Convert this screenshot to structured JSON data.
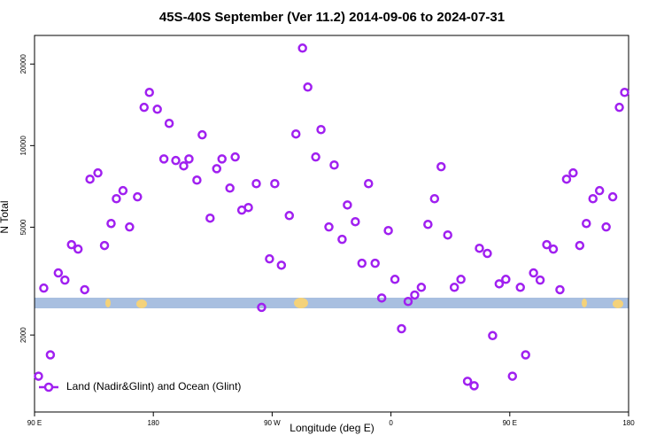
{
  "chart_data": {
    "type": "scatter",
    "title": "45S-40S September (Ver 11.2)   2014-09-06 to 2024-07-31",
    "xlabel": "Longitude (deg E)",
    "ylabel": "N Total",
    "xlim": [
      90,
      540
    ],
    "xticks": [
      {
        "value": 90,
        "label": "90 E"
      },
      {
        "value": 180,
        "label": "180"
      },
      {
        "value": 270,
        "label": "90 W"
      },
      {
        "value": 360,
        "label": "0"
      },
      {
        "value": 450,
        "label": "90 E"
      },
      {
        "value": 540,
        "label": "180"
      }
    ],
    "ylim": [
      1040,
      25500
    ],
    "ylog": true,
    "yticks": [
      2000,
      5000,
      10000,
      20000
    ],
    "legend": "bottom-left",
    "series": [
      {
        "name": "Land (Nadir&Glint) and Ocean (Glint)",
        "color": "#a020f0",
        "x": [
          93,
          102,
          97,
          108,
          113,
          118,
          123,
          128,
          132,
          138,
          143,
          148,
          152,
          157,
          162,
          168,
          173,
          177,
          183,
          192,
          188,
          197,
          203,
          207,
          213,
          217,
          223,
          228,
          232,
          238,
          242,
          247,
          252,
          258,
          262,
          268,
          272,
          277,
          283,
          288,
          293,
          297,
          303,
          307,
          313,
          317,
          323,
          327,
          333,
          338,
          343,
          348,
          353,
          358,
          363,
          368,
          373,
          378,
          383,
          388,
          393,
          398,
          403,
          408,
          413,
          418,
          423,
          427,
          433,
          437,
          442,
          447,
          452,
          458,
          462,
          468,
          473,
          478,
          483,
          488,
          493,
          498,
          503,
          508,
          513,
          518,
          523,
          528,
          533,
          537
        ],
        "values": [
          1410,
          1690,
          2980,
          3390,
          3190,
          4310,
          4150,
          2940,
          7520,
          7930,
          4280,
          5160,
          6370,
          6820,
          5010,
          6470,
          13840,
          15720,
          13620,
          12080,
          8930,
          8810,
          8420,
          8930,
          7460,
          10960,
          5400,
          8220,
          8930,
          6970,
          9080,
          5780,
          5910,
          7240,
          2530,
          3820,
          7240,
          3620,
          5520,
          11040,
          22900,
          16440,
          9080,
          11460,
          5010,
          8480,
          4510,
          6040,
          5240,
          3680,
          7240,
          3680,
          2740,
          4860,
          3210,
          2110,
          2660,
          2810,
          3000,
          5120,
          6370,
          8360,
          4680,
          3000,
          3210,
          1350,
          1300,
          4180,
          4000,
          1990,
          3090,
          3210,
          1410,
          3000,
          1690,
          3390,
          3190,
          4310,
          4150,
          2940,
          7520,
          7930,
          4280,
          5160,
          6370,
          6820,
          5010,
          6470,
          13840,
          15720
        ]
      }
    ]
  }
}
